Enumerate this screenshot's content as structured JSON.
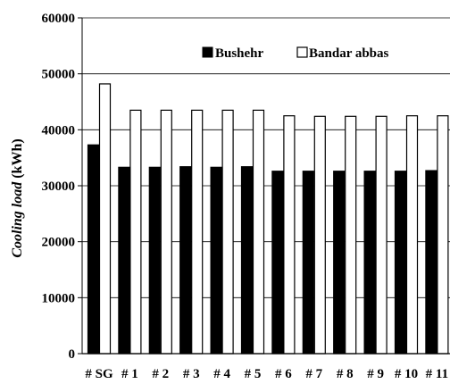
{
  "chart_data": {
    "type": "bar",
    "categories": [
      "# SG",
      "# 1",
      "# 2",
      "# 3",
      "# 4",
      "# 5",
      "# 6",
      "# 7",
      "# 8",
      "# 9",
      "# 10",
      "# 11"
    ],
    "series": [
      {
        "name": "Bushehr",
        "color": "#000000",
        "fill": "solid",
        "values": [
          37300,
          33300,
          33300,
          33400,
          33300,
          33400,
          32600,
          32600,
          32600,
          32600,
          32600,
          32700
        ]
      },
      {
        "name": "Bandar abbas",
        "color": "#ffffff",
        "fill": "hollow",
        "values": [
          48200,
          43500,
          43500,
          43500,
          43500,
          43500,
          42500,
          42400,
          42400,
          42400,
          42500,
          42500
        ]
      }
    ],
    "ylabel_italic": "Cooling load",
    "ylabel_unit": "(kWh)",
    "ylim": [
      0,
      60000
    ],
    "yticks": [
      "0",
      "10000",
      "20000",
      "30000",
      "40000",
      "50000",
      "60000"
    ],
    "grid": true,
    "legend_position": "top-right"
  }
}
